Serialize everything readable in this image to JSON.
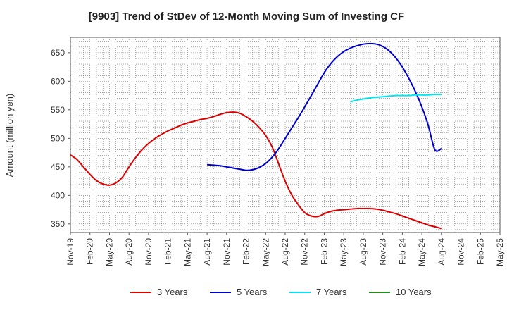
{
  "chart_data": {
    "type": "line",
    "title": "[9903]  Trend of StDev of 12-Month Moving Sum of Investing CF",
    "ylabel": "Amount (million yen)",
    "xlabel": "",
    "ylim": [
      335,
      677
    ],
    "yticks": [
      350,
      400,
      450,
      500,
      550,
      600,
      650
    ],
    "x_tick_labels": [
      "Nov-19",
      "Feb-20",
      "May-20",
      "Aug-20",
      "Nov-20",
      "Feb-21",
      "May-21",
      "Aug-21",
      "Nov-21",
      "Feb-22",
      "May-22",
      "Aug-22",
      "Nov-22",
      "Feb-23",
      "May-23",
      "Aug-23",
      "Nov-23",
      "Feb-24",
      "May-24",
      "Aug-24",
      "Nov-24",
      "Feb-25",
      "May-25"
    ],
    "grid": true,
    "legend_position": "bottom",
    "series": [
      {
        "name": "3 Years",
        "color": "#dd0000",
        "x": [
          "Nov-19",
          "Dec-19",
          "Jan-20",
          "Feb-20",
          "Mar-20",
          "Apr-20",
          "May-20",
          "Jun-20",
          "Jul-20",
          "Aug-20",
          "Sep-20",
          "Oct-20",
          "Nov-20",
          "Dec-20",
          "Jan-21",
          "Feb-21",
          "Mar-21",
          "Apr-21",
          "May-21",
          "Jun-21",
          "Jul-21",
          "Aug-21",
          "Sep-21",
          "Oct-21",
          "Nov-21",
          "Dec-21",
          "Jan-22",
          "Feb-22",
          "Mar-22",
          "Apr-22",
          "May-22",
          "Jun-22",
          "Jul-22",
          "Aug-22",
          "Sep-22",
          "Oct-22",
          "Nov-22",
          "Dec-22",
          "Jan-23",
          "Feb-23",
          "Mar-23",
          "Apr-23",
          "May-23",
          "Jun-23",
          "Jul-23",
          "Aug-23",
          "Sep-23",
          "Oct-23",
          "Nov-23",
          "Dec-23",
          "Jan-24",
          "Feb-24",
          "Mar-24",
          "Apr-24",
          "May-24",
          "Jun-24",
          "Jul-24",
          "Aug-24"
        ],
        "values": [
          471,
          463,
          450,
          437,
          426,
          420,
          418,
          422,
          432,
          450,
          466,
          480,
          491,
          500,
          507,
          513,
          518,
          523,
          527,
          530,
          533,
          535,
          538,
          542,
          545,
          546,
          544,
          538,
          530,
          519,
          505,
          485,
          455,
          425,
          401,
          384,
          370,
          364,
          363,
          368,
          372,
          374,
          375,
          376,
          377,
          377,
          377,
          376,
          374,
          371,
          368,
          364,
          360,
          356,
          352,
          348,
          345,
          342
        ]
      },
      {
        "name": "5 Years",
        "color": "#0000cc",
        "x": [
          "Aug-21",
          "Sep-21",
          "Oct-21",
          "Nov-21",
          "Dec-21",
          "Jan-22",
          "Feb-22",
          "Mar-22",
          "Apr-22",
          "May-22",
          "Jun-22",
          "Jul-22",
          "Aug-22",
          "Sep-22",
          "Oct-22",
          "Nov-22",
          "Dec-22",
          "Jan-23",
          "Feb-23",
          "Mar-23",
          "Apr-23",
          "May-23",
          "Jun-23",
          "Jul-23",
          "Aug-23",
          "Sep-23",
          "Oct-23",
          "Nov-23",
          "Dec-23",
          "Jan-24",
          "Feb-24",
          "Mar-24",
          "Apr-24",
          "May-24",
          "Jun-24",
          "Jul-24",
          "Aug-24"
        ],
        "values": [
          454,
          453,
          452,
          450,
          448,
          446,
          444,
          445,
          449,
          456,
          467,
          482,
          500,
          518,
          536,
          555,
          575,
          595,
          615,
          631,
          643,
          652,
          658,
          662,
          665,
          666,
          665,
          661,
          653,
          641,
          625,
          605,
          582,
          555,
          522,
          480,
          482
        ]
      },
      {
        "name": "7 Years",
        "color": "#00e5ee",
        "x": [
          "Jun-23",
          "Jul-23",
          "Aug-23",
          "Sep-23",
          "Oct-23",
          "Nov-23",
          "Dec-23",
          "Jan-24",
          "Feb-24",
          "Mar-24",
          "Apr-24",
          "May-24",
          "Jun-24",
          "Jul-24",
          "Aug-24"
        ],
        "values": [
          564,
          567,
          569,
          571,
          572,
          573,
          574,
          575,
          575,
          575,
          576,
          576,
          576,
          577,
          577
        ]
      },
      {
        "name": "10 Years",
        "color": "#228b22",
        "x": [],
        "values": []
      }
    ]
  }
}
